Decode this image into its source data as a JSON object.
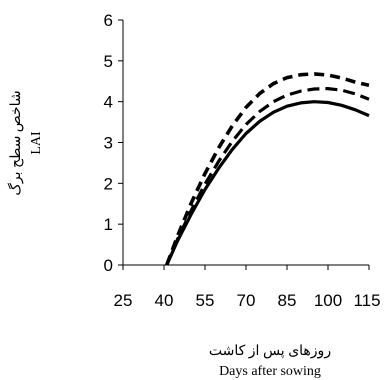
{
  "chart_data": {
    "type": "line",
    "xlabel_fa": "روزهای پس از کاشت",
    "xlabel_en": "Days after sowing",
    "ylabel_fa": "شاخص سطح برگ",
    "ylabel_en": "LAI",
    "xlim": [
      25,
      115
    ],
    "ylim": [
      0,
      6
    ],
    "xticks": [
      "25",
      "40",
      "55",
      "70",
      "85",
      "100",
      "115"
    ],
    "yticks": [
      "0",
      "1",
      "2",
      "3",
      "4",
      "5",
      "6"
    ],
    "grid": false,
    "series": [
      {
        "style": "solid",
        "x": [
          41,
          45,
          50,
          55,
          60,
          65,
          70,
          75,
          80,
          85,
          90,
          95,
          100,
          105,
          110,
          115
        ],
        "y": [
          0,
          0.6,
          1.25,
          1.85,
          2.37,
          2.83,
          3.22,
          3.52,
          3.74,
          3.89,
          3.97,
          4.0,
          3.98,
          3.91,
          3.8,
          3.66
        ]
      },
      {
        "style": "long-dash",
        "x": [
          41,
          45,
          50,
          55,
          60,
          65,
          70,
          75,
          80,
          85,
          90,
          95,
          100,
          105,
          110,
          115
        ],
        "y": [
          0,
          0.64,
          1.34,
          1.98,
          2.54,
          3.03,
          3.44,
          3.76,
          4.0,
          4.16,
          4.26,
          4.31,
          4.32,
          4.28,
          4.19,
          4.06
        ]
      },
      {
        "style": "short-dash",
        "x": [
          41,
          45,
          50,
          55,
          60,
          65,
          70,
          75,
          80,
          85,
          90,
          95,
          100,
          105,
          110,
          115
        ],
        "y": [
          0,
          0.72,
          1.52,
          2.24,
          2.87,
          3.41,
          3.86,
          4.2,
          4.44,
          4.59,
          4.66,
          4.68,
          4.65,
          4.58,
          4.48,
          4.4
        ]
      }
    ]
  }
}
